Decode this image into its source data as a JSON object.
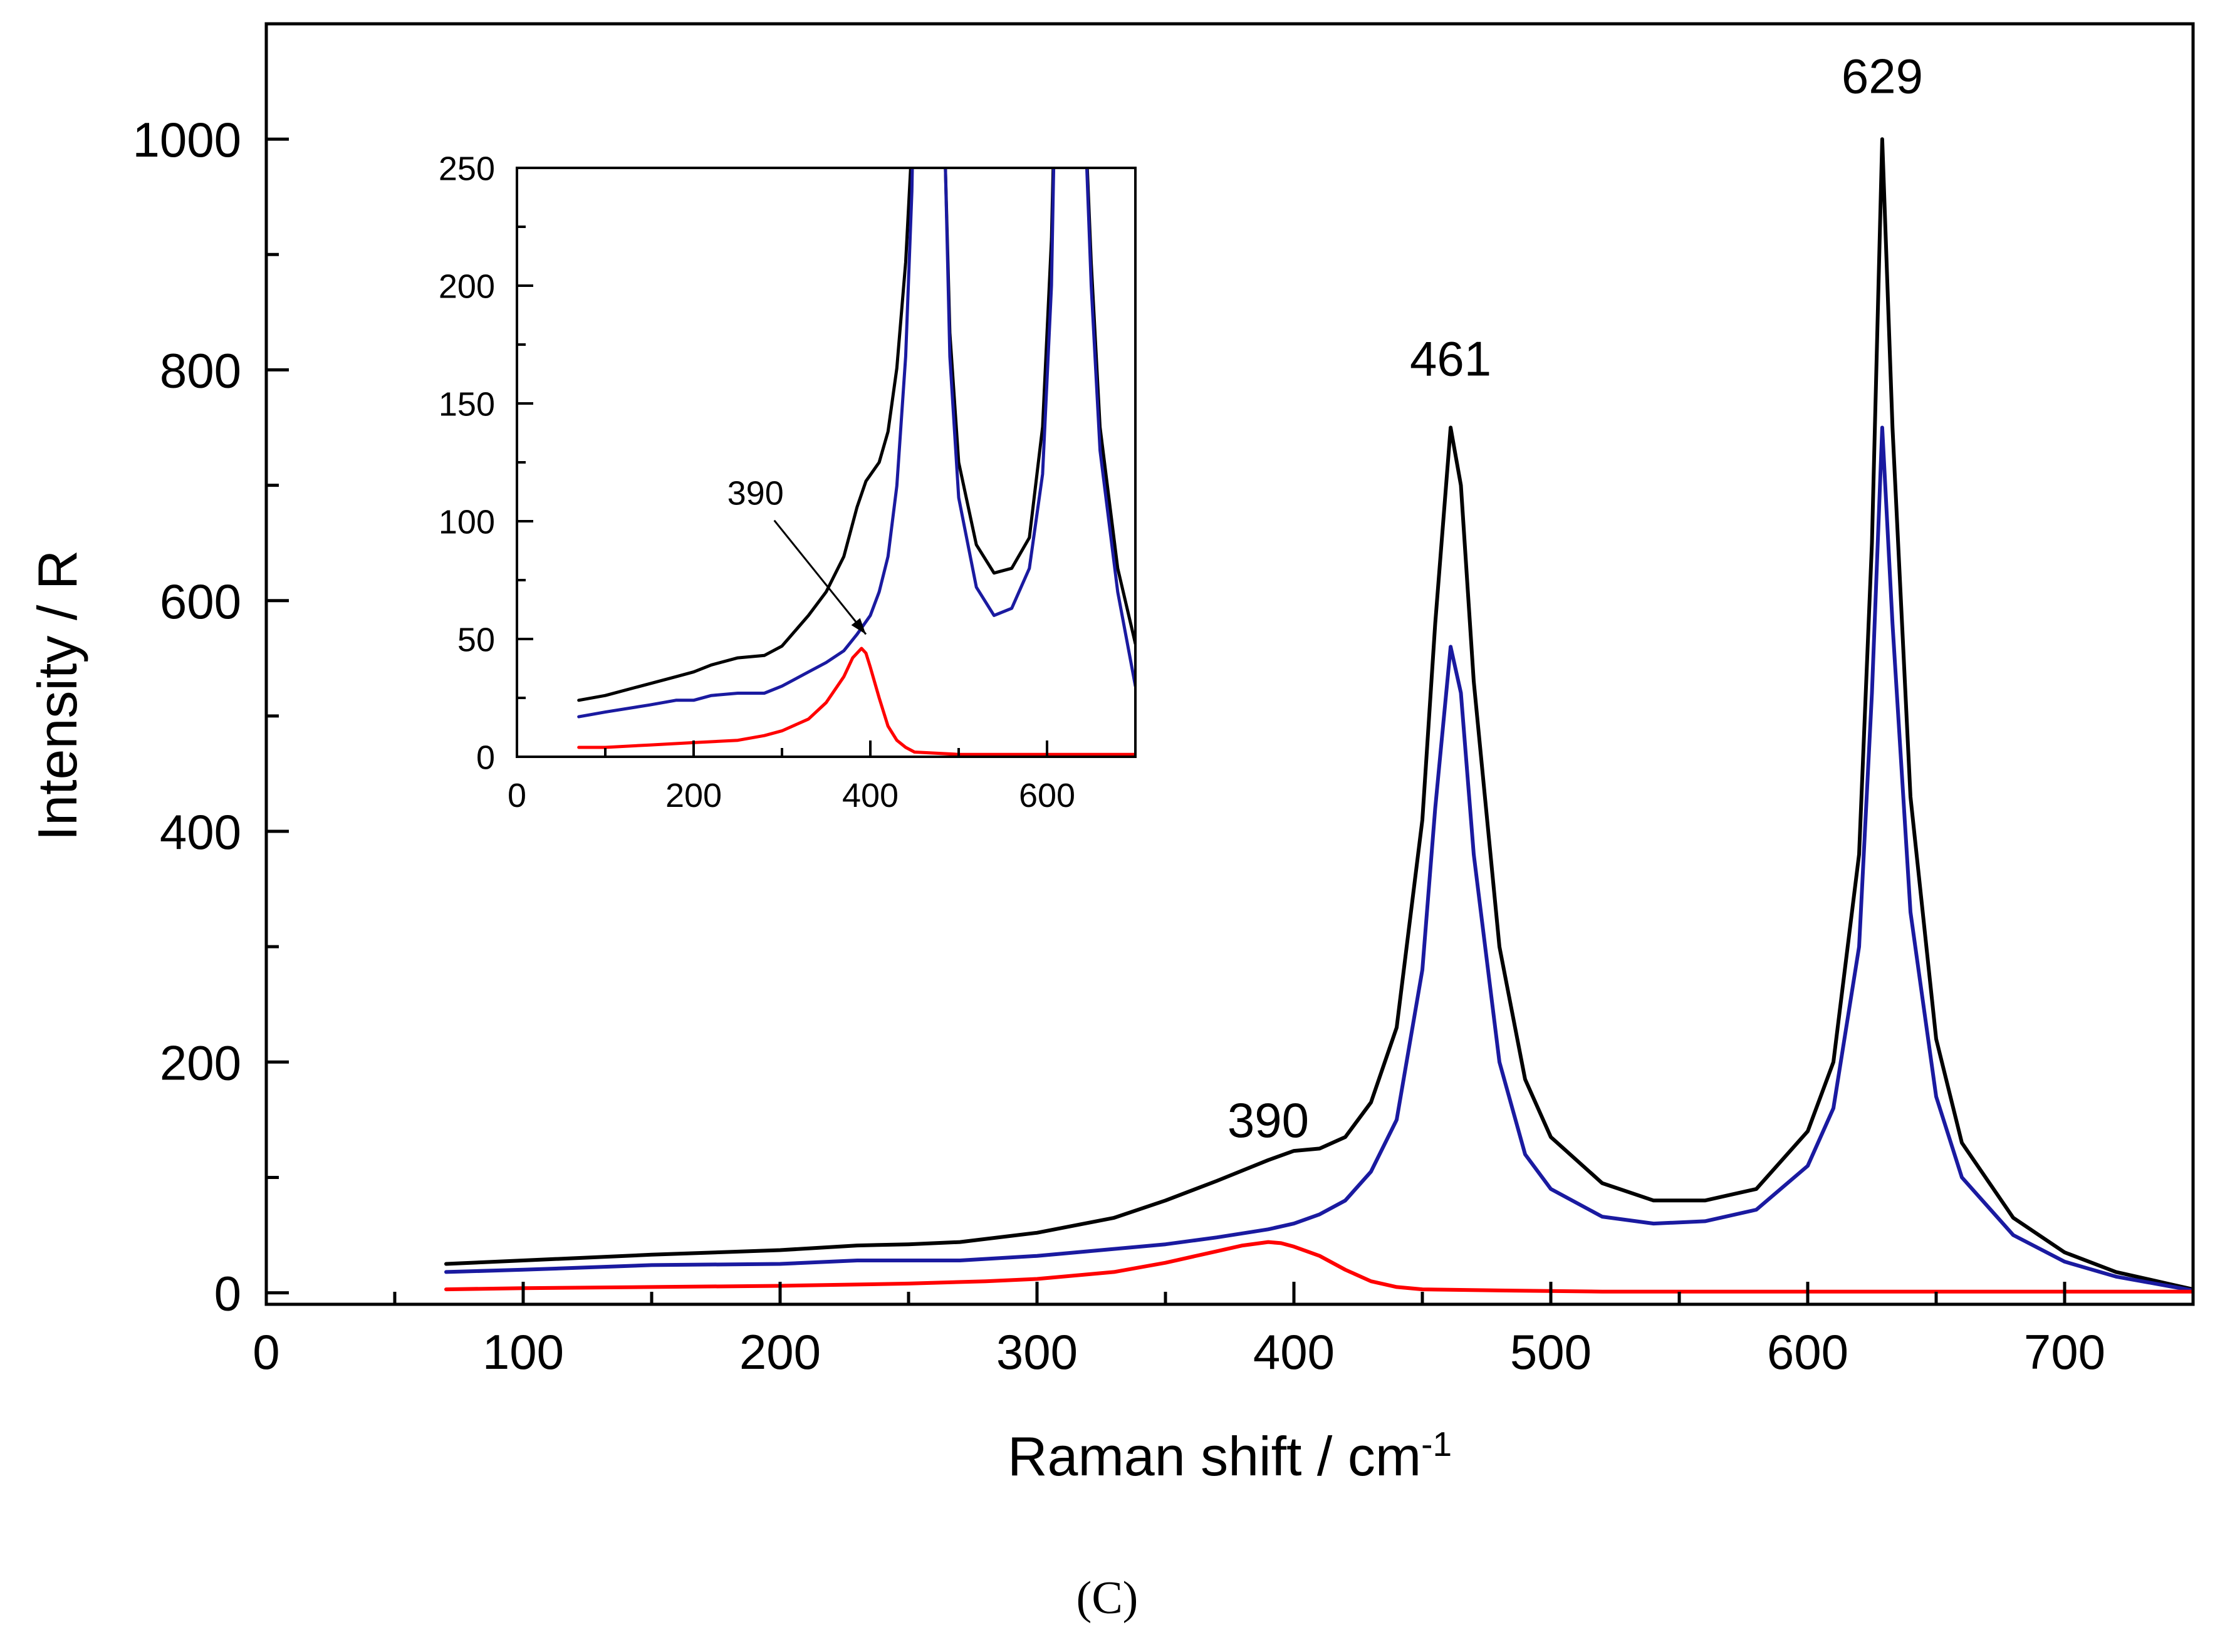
{
  "panel_label": "(C)",
  "chart_data": [
    {
      "id": "main",
      "type": "line",
      "title": "",
      "xlabel": "Raman shift / cm",
      "xlabel_superscript": "-1",
      "ylabel": "Intensity / R",
      "xlim": [
        0,
        750
      ],
      "ylim": [
        -10,
        1100
      ],
      "xticks": [
        0,
        100,
        200,
        300,
        400,
        500,
        600,
        700
      ],
      "xtick_labels": [
        "0",
        "100",
        "200",
        "300",
        "400",
        "500",
        "600",
        "700"
      ],
      "xminor_step": 50,
      "yticks": [
        0,
        200,
        400,
        600,
        800,
        1000
      ],
      "ytick_labels": [
        "0",
        "200",
        "400",
        "600",
        "800",
        "1000"
      ],
      "yminor_step": 100,
      "grid": false,
      "annotations": [
        {
          "text": "390",
          "x": 390,
          "y": 135
        },
        {
          "text": "461",
          "x": 461,
          "y": 795
        },
        {
          "text": "629",
          "x": 629,
          "y": 1040
        }
      ],
      "series": [
        {
          "name": "black",
          "color": "#000000",
          "x": [
            70,
            100,
            150,
            200,
            230,
            250,
            270,
            300,
            330,
            350,
            370,
            390,
            400,
            410,
            420,
            430,
            440,
            450,
            455,
            461,
            465,
            470,
            480,
            490,
            500,
            520,
            540,
            560,
            580,
            600,
            610,
            620,
            625,
            629,
            633,
            640,
            650,
            660,
            680,
            700,
            720,
            740,
            750
          ],
          "y": [
            25,
            28,
            33,
            37,
            41,
            42,
            44,
            52,
            65,
            80,
            97,
            115,
            123,
            125,
            135,
            165,
            230,
            410,
            580,
            750,
            700,
            530,
            300,
            185,
            135,
            95,
            80,
            80,
            90,
            140,
            200,
            380,
            650,
            1000,
            750,
            430,
            220,
            130,
            65,
            35,
            18,
            8,
            3
          ]
        },
        {
          "name": "blue",
          "color": "#1a1aa0",
          "x": [
            70,
            100,
            150,
            200,
            230,
            250,
            270,
            300,
            330,
            350,
            370,
            390,
            400,
            410,
            420,
            430,
            440,
            450,
            455,
            461,
            465,
            470,
            480,
            490,
            500,
            520,
            540,
            560,
            580,
            600,
            610,
            620,
            625,
            629,
            633,
            640,
            650,
            660,
            680,
            700,
            720,
            740,
            750
          ],
          "y": [
            18,
            20,
            24,
            25,
            28,
            28,
            28,
            32,
            38,
            42,
            48,
            55,
            60,
            68,
            80,
            105,
            150,
            280,
            420,
            560,
            520,
            380,
            200,
            120,
            90,
            66,
            60,
            62,
            72,
            110,
            160,
            300,
            520,
            750,
            580,
            330,
            170,
            100,
            50,
            27,
            14,
            6,
            2
          ]
        },
        {
          "name": "red",
          "color": "#ff0000",
          "x": [
            70,
            100,
            150,
            200,
            250,
            280,
            300,
            330,
            350,
            370,
            380,
            390,
            395,
            400,
            410,
            420,
            430,
            440,
            450,
            480,
            520,
            600,
            700,
            750
          ],
          "y": [
            3,
            4,
            5,
            6,
            8,
            10,
            12,
            18,
            26,
            36,
            41,
            44,
            43,
            40,
            32,
            20,
            10,
            5,
            3,
            2,
            1,
            1,
            1,
            1
          ]
        }
      ]
    },
    {
      "id": "inset",
      "type": "line",
      "title": "",
      "xlabel": "",
      "ylabel": "",
      "xlim": [
        0,
        700
      ],
      "ylim": [
        0,
        250
      ],
      "xticks": [
        0,
        200,
        400,
        600
      ],
      "xtick_labels": [
        "0",
        "200",
        "400",
        "600"
      ],
      "xminor_step": 100,
      "yticks": [
        0,
        50,
        100,
        150,
        200,
        250
      ],
      "ytick_labels": [
        "0",
        "50",
        "100",
        "150",
        "200",
        "250"
      ],
      "yminor_step": 25,
      "grid": false,
      "annotations": [
        {
          "text": "390",
          "x": 270,
          "y": 107,
          "arrow_to": [
            395,
            52
          ]
        }
      ],
      "series": [
        {
          "name": "black",
          "color": "#000000",
          "x": [
            70,
            100,
            150,
            180,
            200,
            220,
            250,
            280,
            300,
            330,
            350,
            370,
            385,
            395,
            410,
            420,
            430,
            440,
            447,
            452,
            480,
            485,
            490,
            500,
            520,
            540,
            560,
            580,
            595,
            605,
            610,
            640,
            650,
            660,
            680,
            700
          ],
          "y": [
            24,
            26,
            31,
            34,
            36,
            39,
            42,
            43,
            47,
            60,
            70,
            85,
            106,
            117,
            125,
            138,
            165,
            210,
            260,
            300,
            300,
            250,
            180,
            125,
            90,
            78,
            80,
            93,
            140,
            220,
            300,
            300,
            210,
            140,
            80,
            48
          ]
        },
        {
          "name": "blue",
          "color": "#1a1aa0",
          "x": [
            70,
            100,
            150,
            180,
            200,
            220,
            250,
            280,
            300,
            330,
            350,
            370,
            385,
            400,
            410,
            420,
            430,
            440,
            447,
            450,
            480,
            485,
            490,
            500,
            520,
            540,
            560,
            580,
            595,
            605,
            610,
            640,
            650,
            660,
            680,
            700
          ],
          "y": [
            17,
            19,
            22,
            24,
            24,
            26,
            27,
            27,
            30,
            36,
            40,
            45,
            52,
            60,
            70,
            85,
            115,
            170,
            240,
            300,
            300,
            250,
            170,
            110,
            72,
            60,
            63,
            80,
            120,
            200,
            300,
            300,
            200,
            130,
            70,
            30
          ]
        },
        {
          "name": "red",
          "color": "#ff0000",
          "x": [
            70,
            100,
            150,
            200,
            250,
            280,
            300,
            330,
            350,
            370,
            380,
            390,
            395,
            400,
            410,
            420,
            430,
            440,
            450,
            500,
            600,
            700
          ],
          "y": [
            4,
            4,
            5,
            6,
            7,
            9,
            11,
            16,
            23,
            34,
            42,
            46,
            44,
            38,
            25,
            13,
            7,
            4,
            2,
            1,
            1,
            1
          ]
        }
      ]
    }
  ]
}
